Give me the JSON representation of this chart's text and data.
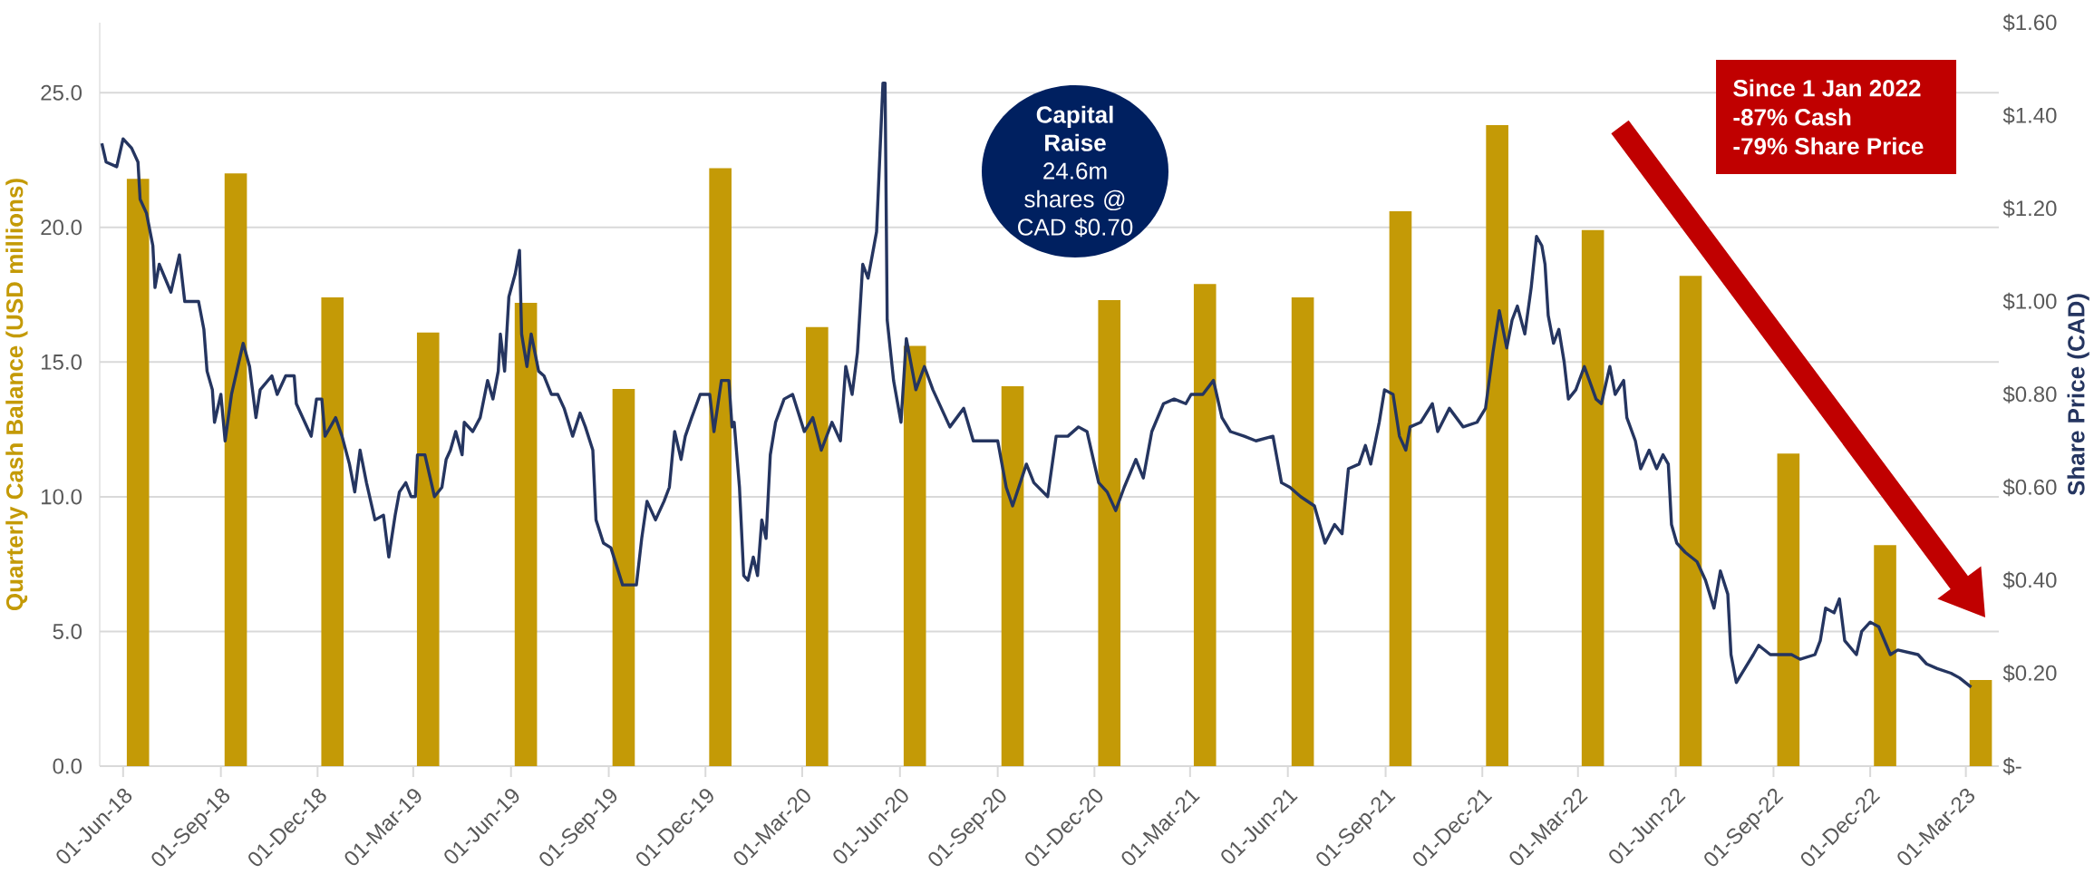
{
  "chart_data": {
    "type": "bar",
    "ylabel": "Quarterly Cash Balance (USD millions)",
    "y2label": "Share Price (CAD)",
    "xlim": [
      "2018-05-10",
      "2023-04-01"
    ],
    "xticks": [
      {
        "value": "2018-06-01",
        "label": "01-Jun-18"
      },
      {
        "value": "2018-09-01",
        "label": "01-Sep-18"
      },
      {
        "value": "2018-12-01",
        "label": "01-Dec-18"
      },
      {
        "value": "2019-03-01",
        "label": "01-Mar-19"
      },
      {
        "value": "2019-06-01",
        "label": "01-Jun-19"
      },
      {
        "value": "2019-09-01",
        "label": "01-Sep-19"
      },
      {
        "value": "2019-12-01",
        "label": "01-Dec-19"
      },
      {
        "value": "2020-03-01",
        "label": "01-Mar-20"
      },
      {
        "value": "2020-06-01",
        "label": "01-Jun-20"
      },
      {
        "value": "2020-09-01",
        "label": "01-Sep-20"
      },
      {
        "value": "2020-12-01",
        "label": "01-Dec-20"
      },
      {
        "value": "2021-03-01",
        "label": "01-Mar-21"
      },
      {
        "value": "2021-06-01",
        "label": "01-Jun-21"
      },
      {
        "value": "2021-09-01",
        "label": "01-Sep-21"
      },
      {
        "value": "2021-12-01",
        "label": "01-Dec-21"
      },
      {
        "value": "2022-03-01",
        "label": "01-Mar-22"
      },
      {
        "value": "2022-06-01",
        "label": "01-Jun-22"
      },
      {
        "value": "2022-09-01",
        "label": "01-Sep-22"
      },
      {
        "value": "2022-12-01",
        "label": "01-Dec-22"
      },
      {
        "value": "2023-03-01",
        "label": "01-Mar-23"
      }
    ],
    "ylim": [
      0,
      27.6
    ],
    "yticks": [
      {
        "value": 0,
        "label": "0.0"
      },
      {
        "value": 5,
        "label": "5.0"
      },
      {
        "value": 10,
        "label": "10.0"
      },
      {
        "value": 15,
        "label": "15.0"
      },
      {
        "value": 20,
        "label": "20.0"
      },
      {
        "value": 25,
        "label": "25.0"
      }
    ],
    "y2lim": [
      0,
      1.6
    ],
    "y2ticks": [
      {
        "value": 0,
        "label": "$-"
      },
      {
        "value": 0.2,
        "label": "$0.20"
      },
      {
        "value": 0.4,
        "label": "$0.40"
      },
      {
        "value": 0.6,
        "label": "$0.60"
      },
      {
        "value": 0.8,
        "label": "$0.80"
      },
      {
        "value": 1.0,
        "label": "$1.00"
      },
      {
        "value": 1.2,
        "label": "$1.20"
      },
      {
        "value": 1.4,
        "label": "$1.40"
      },
      {
        "value": 1.6,
        "label": "$1.60"
      }
    ],
    "grid": "y",
    "annotations": [
      "Capital Raise",
      "24.6m shares @ CAD $0.70",
      "Since 1 Jan 2022",
      "-87% Cash",
      "-79% Share Price"
    ],
    "series": [
      {
        "color": "#c49a06",
        "x": [
          "2018-06-15",
          "2018-09-15",
          "2018-12-15",
          "2019-03-15",
          "2019-06-15",
          "2019-09-15",
          "2019-12-15",
          "2020-03-15",
          "2020-06-15",
          "2020-09-15",
          "2020-12-15",
          "2021-03-15",
          "2021-06-15",
          "2021-09-15",
          "2021-12-15",
          "2022-03-15",
          "2022-06-15",
          "2022-09-15",
          "2022-12-15",
          "2023-03-15"
        ],
        "values": [
          21.8,
          22.0,
          17.4,
          16.1,
          17.2,
          14.0,
          22.2,
          16.3,
          15.6,
          14.1,
          17.3,
          17.9,
          17.4,
          20.6,
          23.8,
          19.9,
          18.2,
          11.6,
          8.2,
          3.2
        ]
      },
      {
        "type": "line",
        "axis": "y2",
        "color": "#253560",
        "x": [
          "2018-05-12",
          "2018-05-16",
          "2018-05-26",
          "2018-06-01",
          "2018-06-09",
          "2018-06-15",
          "2018-06-17",
          "2018-06-23",
          "2018-06-29",
          "2018-07-01",
          "2018-07-05",
          "2018-07-16",
          "2018-07-24",
          "2018-07-29",
          "2018-08-11",
          "2018-08-16",
          "2018-08-19",
          "2018-08-24",
          "2018-08-26",
          "2018-09-01",
          "2018-09-05",
          "2018-09-11",
          "2018-09-17",
          "2018-09-22",
          "2018-09-28",
          "2018-10-04",
          "2018-10-08",
          "2018-10-19",
          "2018-10-24",
          "2018-11-01",
          "2018-11-09",
          "2018-11-11",
          "2018-11-19",
          "2018-11-25",
          "2018-11-30",
          "2018-12-05",
          "2018-12-08",
          "2018-12-13",
          "2018-12-18",
          "2018-12-24",
          "2018-12-31",
          "2019-01-05",
          "2019-01-10",
          "2019-01-16",
          "2019-01-24",
          "2019-02-01",
          "2019-02-06",
          "2019-02-12",
          "2019-02-16",
          "2019-02-22",
          "2019-02-27",
          "2019-03-03",
          "2019-03-05",
          "2019-03-12",
          "2019-03-21",
          "2019-03-28",
          "2019-04-01",
          "2019-04-05",
          "2019-04-10",
          "2019-04-16",
          "2019-04-18",
          "2019-04-26",
          "2019-05-03",
          "2019-05-10",
          "2019-05-15",
          "2019-05-20",
          "2019-05-22",
          "2019-05-26",
          "2019-05-30",
          "2019-06-05",
          "2019-06-09",
          "2019-06-11",
          "2019-06-16",
          "2019-06-20",
          "2019-06-27",
          "2019-07-02",
          "2019-07-09",
          "2019-07-15",
          "2019-07-21",
          "2019-07-29",
          "2019-08-05",
          "2019-08-10",
          "2019-08-17",
          "2019-08-20",
          "2019-08-27",
          "2019-09-03",
          "2019-09-14",
          "2019-09-22",
          "2019-09-27",
          "2019-10-02",
          "2019-10-07",
          "2019-10-15",
          "2019-10-23",
          "2019-10-28",
          "2019-11-02",
          "2019-11-08",
          "2019-11-12",
          "2019-11-18",
          "2019-11-26",
          "2019-12-05",
          "2019-12-09",
          "2019-12-16",
          "2019-12-23",
          "2019-12-26",
          "2019-12-28",
          "2020-01-02",
          "2020-01-06",
          "2020-01-10",
          "2020-01-15",
          "2020-01-19",
          "2020-01-23",
          "2020-01-27",
          "2020-01-31",
          "2020-02-05",
          "2020-02-13",
          "2020-02-21",
          "2020-03-03",
          "2020-03-11",
          "2020-03-19",
          "2020-03-29",
          "2020-04-06",
          "2020-04-11",
          "2020-04-17",
          "2020-04-22",
          "2020-04-27",
          "2020-05-02",
          "2020-05-10",
          "2020-05-16",
          "2020-05-18",
          "2020-05-20",
          "2020-05-26",
          "2020-06-02",
          "2020-06-07",
          "2020-06-16",
          "2020-06-24",
          "2020-07-02",
          "2020-07-10",
          "2020-07-18",
          "2020-07-31",
          "2020-08-09",
          "2020-08-22",
          "2020-09-01",
          "2020-09-09",
          "2020-09-15",
          "2020-09-28",
          "2020-10-05",
          "2020-10-18",
          "2020-10-26",
          "2020-11-06",
          "2020-11-16",
          "2020-11-24",
          "2020-12-05",
          "2020-12-13",
          "2020-12-21",
          "2020-12-29",
          "2021-01-09",
          "2021-01-16",
          "2021-01-24",
          "2021-02-04",
          "2021-02-14",
          "2021-02-25",
          "2021-03-02",
          "2021-03-13",
          "2021-03-23",
          "2021-03-31",
          "2021-04-08",
          "2021-04-21",
          "2021-05-02",
          "2021-05-18",
          "2021-05-26",
          "2021-06-03",
          "2021-06-13",
          "2021-06-26",
          "2021-07-06",
          "2021-07-15",
          "2021-07-22",
          "2021-07-28",
          "2021-08-07",
          "2021-08-13",
          "2021-08-18",
          "2021-08-26",
          "2021-08-31",
          "2021-09-08",
          "2021-09-14",
          "2021-09-20",
          "2021-09-24",
          "2021-10-04",
          "2021-10-15",
          "2021-10-20",
          "2021-10-31",
          "2021-11-13",
          "2021-11-26",
          "2021-12-04",
          "2021-12-11",
          "2021-12-17",
          "2021-12-24",
          "2021-12-29",
          "2022-01-03",
          "2022-01-10",
          "2022-01-16",
          "2022-01-21",
          "2022-01-26",
          "2022-01-29",
          "2022-02-01",
          "2022-02-06",
          "2022-02-11",
          "2022-02-16",
          "2022-02-20",
          "2022-02-27",
          "2022-03-07",
          "2022-03-18",
          "2022-03-23",
          "2022-03-31",
          "2022-04-05",
          "2022-04-13",
          "2022-04-16",
          "2022-04-24",
          "2022-04-29",
          "2022-05-07",
          "2022-05-14",
          "2022-05-20",
          "2022-05-25",
          "2022-05-28",
          "2022-06-02",
          "2022-06-10",
          "2022-06-21",
          "2022-06-29",
          "2022-07-07",
          "2022-07-13",
          "2022-07-20",
          "2022-07-23",
          "2022-07-28",
          "2022-08-05",
          "2022-08-13",
          "2022-08-18",
          "2022-08-29",
          "2022-09-08",
          "2022-09-18",
          "2022-09-26",
          "2022-10-10",
          "2022-10-15",
          "2022-10-20",
          "2022-10-28",
          "2022-11-02",
          "2022-11-07",
          "2022-11-18",
          "2022-11-23",
          "2022-12-01",
          "2022-12-09",
          "2022-12-20",
          "2022-12-27",
          "2023-01-15",
          "2023-01-23",
          "2023-02-02",
          "2023-02-15",
          "2023-02-23",
          "2023-03-06"
        ],
        "values": [
          1.34,
          1.3,
          1.29,
          1.35,
          1.33,
          1.3,
          1.22,
          1.19,
          1.12,
          1.03,
          1.08,
          1.02,
          1.1,
          1.0,
          1.0,
          0.94,
          0.85,
          0.81,
          0.74,
          0.8,
          0.7,
          0.8,
          0.86,
          0.91,
          0.86,
          0.75,
          0.81,
          0.84,
          0.8,
          0.84,
          0.84,
          0.78,
          0.74,
          0.71,
          0.79,
          0.79,
          0.71,
          0.73,
          0.75,
          0.71,
          0.65,
          0.59,
          0.68,
          0.61,
          0.53,
          0.54,
          0.45,
          0.54,
          0.59,
          0.61,
          0.58,
          0.58,
          0.67,
          0.67,
          0.58,
          0.6,
          0.66,
          0.68,
          0.72,
          0.67,
          0.74,
          0.72,
          0.75,
          0.83,
          0.79,
          0.85,
          0.93,
          0.85,
          1.01,
          1.06,
          1.11,
          0.93,
          0.86,
          0.93,
          0.85,
          0.84,
          0.8,
          0.8,
          0.77,
          0.71,
          0.76,
          0.73,
          0.68,
          0.53,
          0.48,
          0.47,
          0.39,
          0.39,
          0.39,
          0.49,
          0.57,
          0.53,
          0.57,
          0.6,
          0.72,
          0.66,
          0.71,
          0.75,
          0.8,
          0.8,
          0.72,
          0.83,
          0.83,
          0.73,
          0.74,
          0.6,
          0.41,
          0.4,
          0.45,
          0.41,
          0.53,
          0.49,
          0.67,
          0.74,
          0.79,
          0.8,
          0.72,
          0.75,
          0.68,
          0.74,
          0.7,
          0.86,
          0.8,
          0.89,
          1.08,
          1.05,
          1.15,
          1.47,
          1.47,
          0.96,
          0.83,
          0.74,
          0.92,
          0.81,
          0.86,
          0.81,
          0.77,
          0.73,
          0.77,
          0.7,
          0.7,
          0.7,
          0.6,
          0.56,
          0.65,
          0.61,
          0.58,
          0.71,
          0.71,
          0.73,
          0.72,
          0.61,
          0.59,
          0.55,
          0.6,
          0.66,
          0.62,
          0.72,
          0.78,
          0.79,
          0.78,
          0.8,
          0.8,
          0.83,
          0.75,
          0.72,
          0.71,
          0.7,
          0.71,
          0.61,
          0.6,
          0.58,
          0.56,
          0.48,
          0.52,
          0.5,
          0.64,
          0.65,
          0.69,
          0.65,
          0.74,
          0.81,
          0.8,
          0.71,
          0.68,
          0.73,
          0.74,
          0.78,
          0.72,
          0.77,
          0.73,
          0.74,
          0.77,
          0.89,
          0.98,
          0.9,
          0.96,
          0.99,
          0.93,
          1.03,
          1.14,
          1.12,
          1.08,
          0.97,
          0.91,
          0.94,
          0.87,
          0.79,
          0.81,
          0.86,
          0.79,
          0.78,
          0.86,
          0.8,
          0.83,
          0.75,
          0.7,
          0.64,
          0.68,
          0.64,
          0.67,
          0.65,
          0.52,
          0.48,
          0.46,
          0.44,
          0.4,
          0.34,
          0.42,
          0.37,
          0.24,
          0.18,
          0.21,
          0.24,
          0.26,
          0.24,
          0.24,
          0.24,
          0.23,
          0.24,
          0.27,
          0.34,
          0.33,
          0.36,
          0.27,
          0.24,
          0.29,
          0.31,
          0.3,
          0.24,
          0.25,
          0.24,
          0.22,
          0.21,
          0.2,
          0.19,
          0.17
        ]
      }
    ]
  }
}
